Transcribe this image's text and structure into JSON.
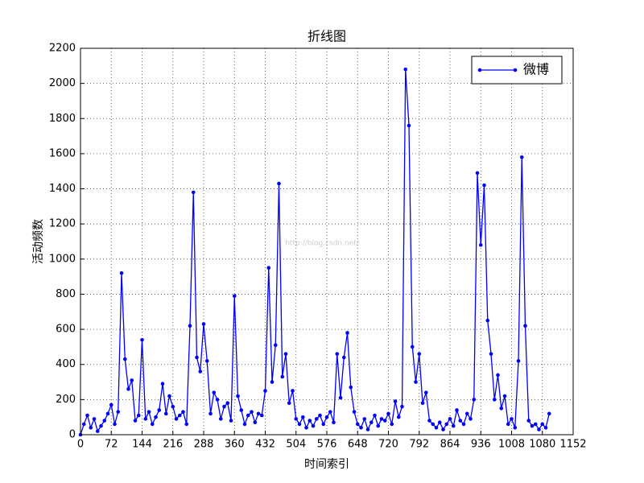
{
  "chart_data": {
    "type": "line",
    "title": "折线图",
    "x_label": "时间索引",
    "y_label": "活动频数",
    "watermark": "http://blog.csdn.net/",
    "x": [
      0,
      8,
      16,
      24,
      32,
      40,
      48,
      56,
      64,
      72,
      80,
      88,
      96,
      104,
      112,
      120,
      128,
      136,
      144,
      152,
      160,
      168,
      176,
      184,
      192,
      200,
      208,
      216,
      224,
      232,
      240,
      248,
      256,
      264,
      272,
      280,
      288,
      296,
      304,
      312,
      320,
      328,
      336,
      344,
      352,
      360,
      368,
      376,
      384,
      392,
      400,
      408,
      416,
      424,
      432,
      440,
      448,
      456,
      464,
      472,
      480,
      488,
      496,
      504,
      512,
      520,
      528,
      536,
      544,
      552,
      560,
      568,
      576,
      584,
      592,
      600,
      608,
      616,
      624,
      632,
      640,
      648,
      656,
      664,
      672,
      680,
      688,
      696,
      704,
      712,
      720,
      728,
      736,
      744,
      752,
      760,
      768,
      776,
      784,
      792,
      800,
      808,
      816,
      824,
      832,
      840,
      848,
      856,
      864,
      872,
      880,
      888,
      896,
      904,
      912,
      920,
      928,
      936,
      944,
      952,
      960,
      968,
      976,
      984,
      992,
      1000,
      1008,
      1016,
      1024,
      1032,
      1040,
      1048,
      1056,
      1064,
      1072,
      1080,
      1088,
      1096
    ],
    "series": [
      {
        "name": "微博",
        "color": "#0000ff",
        "values": [
          0,
          60,
          110,
          40,
          90,
          20,
          50,
          80,
          120,
          170,
          60,
          130,
          920,
          430,
          260,
          310,
          80,
          110,
          540,
          90,
          130,
          60,
          100,
          140,
          290,
          120,
          220,
          160,
          90,
          110,
          130,
          60,
          620,
          1380,
          440,
          360,
          630,
          420,
          120,
          240,
          200,
          90,
          160,
          180,
          80,
          790,
          220,
          140,
          60,
          110,
          130,
          70,
          120,
          110,
          250,
          950,
          300,
          510,
          1430,
          330,
          460,
          180,
          250,
          90,
          60,
          100,
          40,
          80,
          50,
          90,
          110,
          60,
          100,
          130,
          70,
          460,
          210,
          440,
          580,
          270,
          130,
          60,
          40,
          90,
          30,
          70,
          110,
          50,
          90,
          80,
          120,
          60,
          190,
          100,
          160,
          2080,
          1760,
          500,
          300,
          460,
          180,
          240,
          80,
          60,
          40,
          70,
          30,
          60,
          90,
          50,
          140,
          80,
          60,
          120,
          90,
          200,
          1490,
          1080,
          1420,
          650,
          460,
          200,
          340,
          150,
          220,
          60,
          90,
          40,
          420,
          1580,
          620,
          80,
          50,
          60,
          30,
          60,
          40,
          120
        ]
      }
    ],
    "xlim": [
      0,
      1152
    ],
    "xticks": [
      0,
      72,
      144,
      216,
      288,
      360,
      432,
      504,
      576,
      648,
      720,
      792,
      864,
      936,
      1008,
      1080,
      1152
    ],
    "ylim": [
      0,
      2200
    ],
    "yticks": [
      0,
      200,
      400,
      600,
      800,
      1000,
      1200,
      1400,
      1600,
      1800,
      2000,
      2200
    ],
    "grid": true,
    "legend": "upper right"
  }
}
